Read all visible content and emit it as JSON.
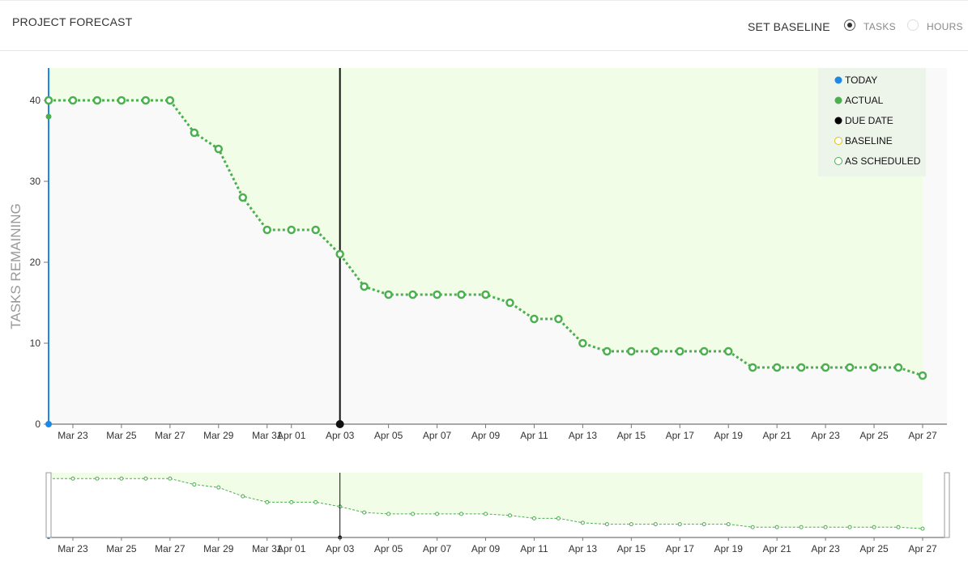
{
  "header": {
    "title": "PROJECT FORECAST",
    "set_baseline_label": "SET BASELINE",
    "mode_options": [
      {
        "label": "TASKS",
        "selected": true
      },
      {
        "label": "HOURS",
        "selected": false
      }
    ]
  },
  "chart_data": {
    "type": "line",
    "ylabel": "TASKS REMAINING",
    "ylim": [
      0,
      44
    ],
    "yticks": [
      0,
      10,
      20,
      30,
      40
    ],
    "x_start": "Mar 22",
    "x_end": "Apr 27",
    "xtick_labels": [
      "Mar 23",
      "Mar 25",
      "Mar 27",
      "Mar 29",
      "Mar 31",
      "Apr 01",
      "Apr 03",
      "Apr 05",
      "Apr 07",
      "Apr 09",
      "Apr 11",
      "Apr 13",
      "Apr 15",
      "Apr 17",
      "Apr 19",
      "Apr 21",
      "Apr 23",
      "Apr 25",
      "Apr 27"
    ],
    "legend": {
      "position": "top-right",
      "entries": [
        {
          "label": "TODAY",
          "color": "#1e88e5",
          "style": "filled"
        },
        {
          "label": "ACTUAL",
          "color": "#4caf50",
          "style": "filled"
        },
        {
          "label": "DUE DATE",
          "color": "#000000",
          "style": "filled"
        },
        {
          "label": "BASELINE",
          "color": "#e6c200",
          "style": "hollow"
        },
        {
          "label": "AS SCHEDULED",
          "color": "#4caf50",
          "style": "hollow"
        }
      ]
    },
    "today": {
      "x": "Mar 22",
      "y": 0
    },
    "actual": {
      "x": "Mar 22",
      "y": 38
    },
    "due_date": "Apr 03",
    "scheduled_region": {
      "from": "Mar 22",
      "to": "Apr 27"
    },
    "series": [
      {
        "name": "AS SCHEDULED",
        "color": "#4caf50",
        "points": [
          {
            "x": "Mar 22",
            "y": 40
          },
          {
            "x": "Mar 23",
            "y": 40
          },
          {
            "x": "Mar 24",
            "y": 40
          },
          {
            "x": "Mar 25",
            "y": 40
          },
          {
            "x": "Mar 26",
            "y": 40
          },
          {
            "x": "Mar 27",
            "y": 40
          },
          {
            "x": "Mar 28",
            "y": 36
          },
          {
            "x": "Mar 29",
            "y": 34
          },
          {
            "x": "Mar 30",
            "y": 28
          },
          {
            "x": "Mar 31",
            "y": 24
          },
          {
            "x": "Apr 01",
            "y": 24
          },
          {
            "x": "Apr 02",
            "y": 24
          },
          {
            "x": "Apr 03",
            "y": 21
          },
          {
            "x": "Apr 04",
            "y": 17
          },
          {
            "x": "Apr 05",
            "y": 16
          },
          {
            "x": "Apr 06",
            "y": 16
          },
          {
            "x": "Apr 07",
            "y": 16
          },
          {
            "x": "Apr 08",
            "y": 16
          },
          {
            "x": "Apr 09",
            "y": 16
          },
          {
            "x": "Apr 10",
            "y": 15
          },
          {
            "x": "Apr 11",
            "y": 13
          },
          {
            "x": "Apr 12",
            "y": 13
          },
          {
            "x": "Apr 13",
            "y": 10
          },
          {
            "x": "Apr 14",
            "y": 9
          },
          {
            "x": "Apr 15",
            "y": 9
          },
          {
            "x": "Apr 16",
            "y": 9
          },
          {
            "x": "Apr 17",
            "y": 9
          },
          {
            "x": "Apr 18",
            "y": 9
          },
          {
            "x": "Apr 19",
            "y": 9
          },
          {
            "x": "Apr 20",
            "y": 7
          },
          {
            "x": "Apr 21",
            "y": 7
          },
          {
            "x": "Apr 22",
            "y": 7
          },
          {
            "x": "Apr 23",
            "y": 7
          },
          {
            "x": "Apr 24",
            "y": 7
          },
          {
            "x": "Apr 25",
            "y": 7
          },
          {
            "x": "Apr 26",
            "y": 7
          },
          {
            "x": "Apr 27",
            "y": 6
          }
        ]
      }
    ]
  }
}
